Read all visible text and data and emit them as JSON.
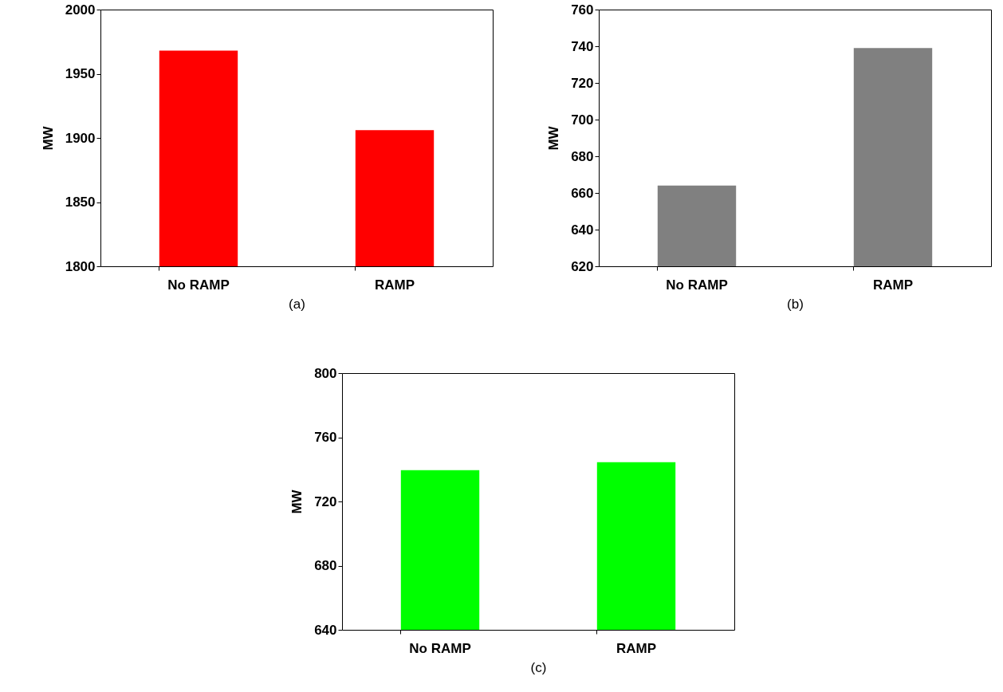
{
  "chart_data": [
    {
      "type": "bar",
      "categories": [
        "No RAMP",
        "RAMP"
      ],
      "values": [
        1968,
        1906
      ],
      "color": "#ff0000",
      "ylabel": "MW",
      "ylim": [
        1800,
        2000
      ],
      "yticks": [
        1800,
        1850,
        1900,
        1950,
        2000
      ],
      "grid": false,
      "annotations": [
        "(a)"
      ]
    },
    {
      "type": "bar",
      "categories": [
        "No RAMP",
        "RAMP"
      ],
      "values": [
        664,
        739
      ],
      "color": "#808080",
      "ylabel": "MW",
      "ylim": [
        620,
        760
      ],
      "yticks": [
        620,
        640,
        660,
        680,
        700,
        720,
        740,
        760
      ],
      "grid": false,
      "annotations": [
        "(b)"
      ]
    },
    {
      "type": "bar",
      "categories": [
        "No RAMP",
        "RAMP"
      ],
      "values": [
        739.5,
        744.5
      ],
      "color": "#00ff00",
      "ylabel": "MW",
      "ylim": [
        640,
        800
      ],
      "yticks": [
        640,
        680,
        720,
        760,
        800
      ],
      "grid": false,
      "annotations": [
        "(c)"
      ]
    }
  ]
}
